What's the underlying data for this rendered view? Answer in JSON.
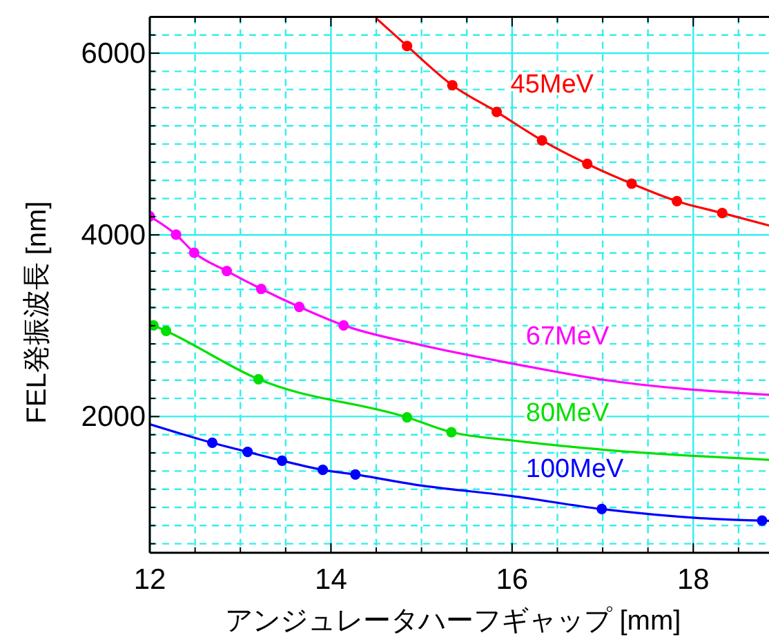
{
  "chart_data": {
    "type": "line",
    "xlabel": "アンジュレータハーフギャップ [mm]",
    "ylabel": "FEL発振波長 [nm]",
    "xlim": [
      12,
      18.85
    ],
    "ylim": [
      500,
      6400
    ],
    "xticks": [
      12,
      {
        "value": 12.5,
        "label": null
      },
      {
        "value": 13,
        "label": null
      },
      {
        "value": 13.5,
        "label": null
      },
      14,
      {
        "value": 14.5,
        "label": null
      },
      {
        "value": 15,
        "label": null
      },
      {
        "value": 15.5,
        "label": null
      },
      16,
      {
        "value": 16.5,
        "label": null
      },
      {
        "value": 17,
        "label": null
      },
      {
        "value": 17.5,
        "label": null
      },
      18,
      {
        "value": 18.5,
        "label": null
      }
    ],
    "yticks": [
      {
        "value": 600,
        "label": null
      },
      {
        "value": 800,
        "label": null
      },
      {
        "value": 1000,
        "label": null
      },
      {
        "value": 1200,
        "label": null
      },
      {
        "value": 1400,
        "label": null
      },
      {
        "value": 1600,
        "label": null
      },
      {
        "value": 1800,
        "label": null
      },
      2000,
      {
        "value": 2200,
        "label": null
      },
      {
        "value": 2400,
        "label": null
      },
      {
        "value": 2600,
        "label": null
      },
      {
        "value": 2800,
        "label": null
      },
      {
        "value": 3000,
        "label": null
      },
      {
        "value": 3200,
        "label": null
      },
      {
        "value": 3400,
        "label": null
      },
      {
        "value": 3600,
        "label": null
      },
      {
        "value": 3800,
        "label": null
      },
      4000,
      {
        "value": 4200,
        "label": null
      },
      {
        "value": 4400,
        "label": null
      },
      {
        "value": 4600,
        "label": null
      },
      {
        "value": 4800,
        "label": null
      },
      {
        "value": 5000,
        "label": null
      },
      {
        "value": 5200,
        "label": null
      },
      {
        "value": 5400,
        "label": null
      },
      {
        "value": 5600,
        "label": null
      },
      {
        "value": 5800,
        "label": null
      },
      6000,
      {
        "value": 6200,
        "label": null
      }
    ],
    "grid": true,
    "legend": false,
    "marker": "none",
    "line_style": "solid",
    "series": [
      {
        "name": "45MeV",
        "color": "#ff0000",
        "x": [
          14.5,
          14.84,
          15.34,
          15.83,
          16.33,
          16.83,
          17.32,
          17.82,
          18.32,
          18.84
        ],
        "values": [
          6383,
          6079,
          5647,
          5354,
          5040,
          4781,
          4564,
          4371,
          4240,
          4103
        ]
      },
      {
        "name": "67MeV",
        "color": "#ff00ff",
        "x": [
          12.0,
          12.29,
          12.49,
          12.85,
          13.23,
          13.65,
          14.14,
          15,
          16,
          17,
          18.84
        ],
        "values": [
          4204,
          4002,
          3804,
          3602,
          3405,
          3207,
          3004,
          2786,
          2584,
          2406,
          2239
        ]
      },
      {
        "name": "80MeV",
        "color": "#00e000",
        "x": [
          12.04,
          12.18,
          13.2,
          14.84,
          15.33,
          16,
          17,
          18.84
        ],
        "values": [
          3004,
          2942,
          2411,
          1991,
          1828,
          1737,
          1636,
          1524
        ]
      },
      {
        "name": "100MeV",
        "color": "#0000ff",
        "x": [
          12.0,
          12.69,
          13.08,
          13.46,
          13.91,
          14.27,
          15,
          16,
          16.99,
          18.76,
          18.84
        ],
        "values": [
          1915,
          1711,
          1611,
          1514,
          1413,
          1362,
          1240,
          1125,
          982,
          854,
          853
        ]
      },
      {
        "type": "scatter",
        "marker": "circle",
        "color": "#ff0000",
        "x": [
          14.84,
          15.34,
          15.83,
          16.33,
          16.83,
          17.32,
          17.82,
          18.32
        ],
        "values": [
          6079,
          5647,
          5354,
          5040,
          4781,
          4564,
          4371,
          4240
        ]
      },
      {
        "type": "scatter",
        "marker": "circle",
        "color": "#ff00ff",
        "x": [
          12.0,
          12.29,
          12.49,
          12.85,
          13.23,
          13.65,
          14.14
        ],
        "values": [
          4204,
          4002,
          3804,
          3602,
          3405,
          3207,
          3004
        ]
      },
      {
        "type": "scatter",
        "marker": "circle",
        "color": "#00e000",
        "x": [
          12.04,
          12.18,
          13.2,
          14.84,
          15.33
        ],
        "values": [
          3004,
          2942,
          2411,
          1991,
          1828
        ]
      },
      {
        "type": "scatter",
        "marker": "circle",
        "color": "#0000ff",
        "x": [
          12.69,
          13.08,
          13.46,
          13.91,
          14.27,
          16.99,
          18.76
        ],
        "values": [
          1711,
          1611,
          1514,
          1413,
          1362,
          982,
          854
        ]
      }
    ]
  }
}
